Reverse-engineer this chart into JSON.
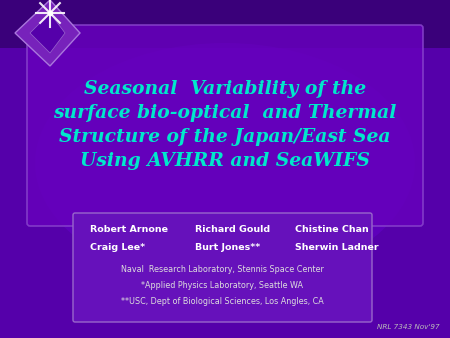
{
  "bg_color": "#5500aa",
  "bg_color_gradient": "#3a007a",
  "title_text": "Seasonal  Variability of the\nsurface bio-optical  and Thermal\nStructure of the Japan/East Sea\nUsing AVHRR and SeaWIFS",
  "title_color": "#00e8cc",
  "title_fontsize": 13.5,
  "title_box_facecolor": "#6600bb",
  "title_box_edgecolor": "#8844cc",
  "authors_line1_cols": [
    "Robert Arnone",
    "Richard Gould",
    "Chistine Chan"
  ],
  "authors_line2_cols": [
    "Craig Lee*",
    "Burt Jones**",
    "Sherwin Ladner"
  ],
  "affil1": "Naval  Research Laboratory, Stennis Space Center",
  "affil2": "*Applied Physics Laboratory, Seattle WA",
  "affil3": "**USC, Dept of Biological Sciences, Los Angles, CA",
  "authors_color": "#ffffff",
  "affil_color": "#dddddd",
  "nrl_text": "NRL 7343 Nov'97",
  "nrl_color": "#bbbbbb",
  "authors_box_facecolor": "#6611bb",
  "authors_box_edgecolor": "#9966cc",
  "diamond_color_outer": "#7722bb",
  "diamond_color_inner": "#5500aa",
  "star_color": "#ffffff"
}
